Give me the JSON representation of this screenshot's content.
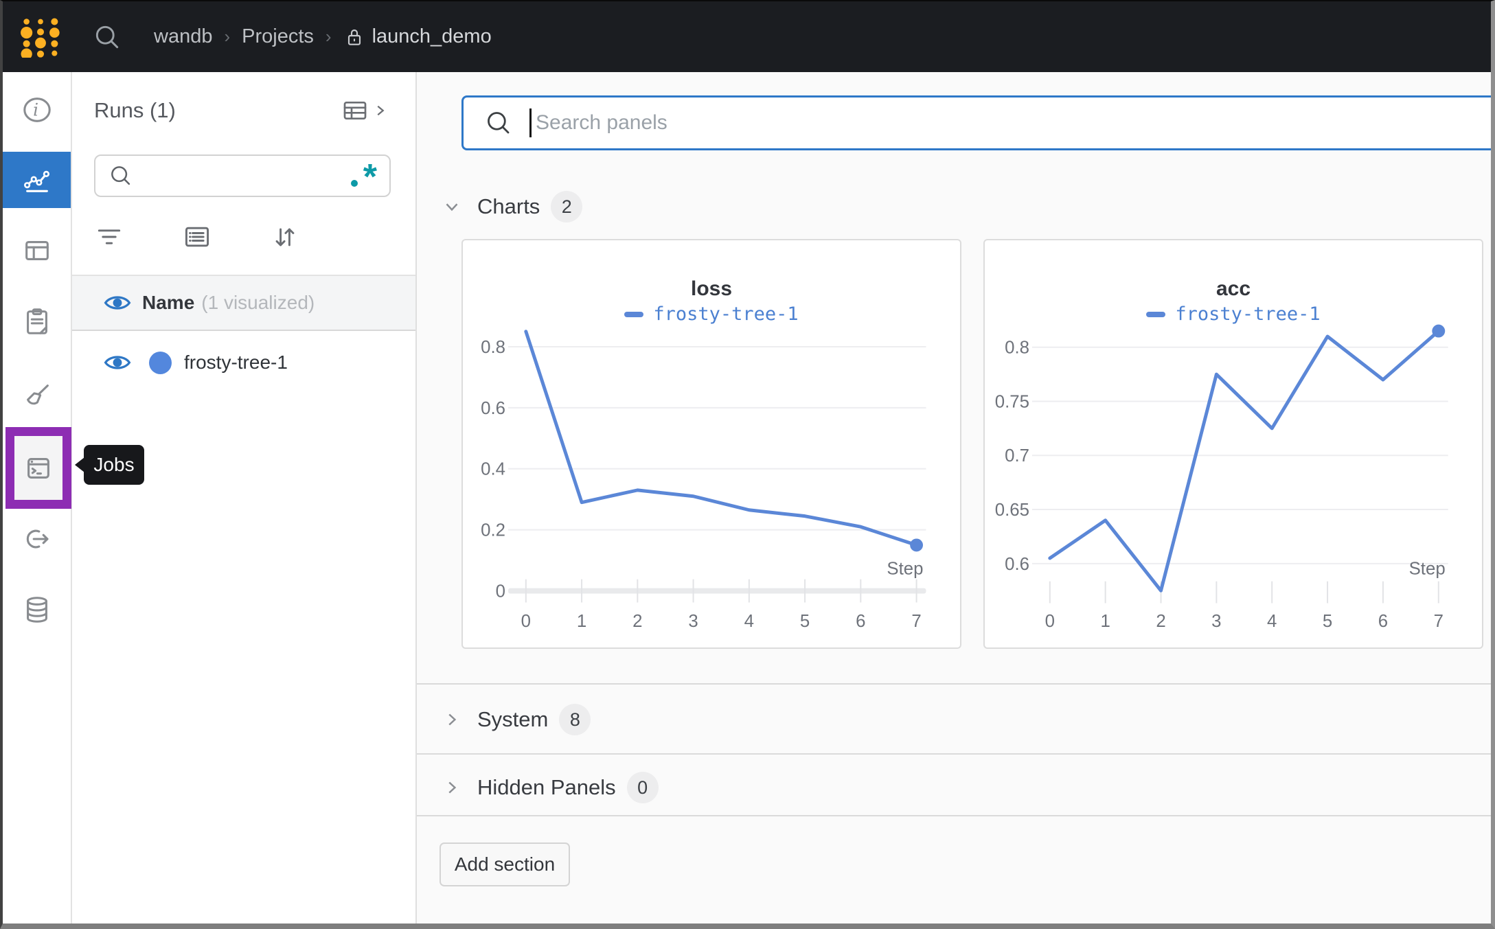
{
  "navbar": {
    "breadcrumb": {
      "team": "wandb",
      "section": "Projects",
      "project": "launch_demo"
    }
  },
  "sidebar": {
    "jobs_tooltip": "Jobs"
  },
  "runs_panel": {
    "title": "Runs (1)",
    "search_value": "",
    "columns_header": {
      "name": "Name",
      "visualized_note": "(1 visualized)"
    },
    "runs": [
      {
        "name": "frosty-tree-1",
        "color": "#5387dd"
      }
    ]
  },
  "main": {
    "panel_search_placeholder": "Search panels",
    "sections": [
      {
        "label": "Charts",
        "count": "2"
      },
      {
        "label": "System",
        "count": "8"
      },
      {
        "label": "Hidden Panels",
        "count": "0"
      }
    ],
    "add_section_label": "Add section"
  },
  "chart_data": [
    {
      "type": "line",
      "title": "loss",
      "xlabel": "Step",
      "xticks": [
        0,
        1,
        2,
        3,
        4,
        5,
        6,
        7
      ],
      "yticks": [
        0,
        0.2,
        0.4,
        0.6,
        0.8
      ],
      "ylim": [
        0,
        0.9
      ],
      "grid": true,
      "legend_position": "top",
      "line_color": "#5b87d7",
      "series": [
        {
          "name": "frosty-tree-1",
          "x": [
            0,
            1,
            2,
            3,
            4,
            5,
            6,
            7
          ],
          "y": [
            0.85,
            0.29,
            0.33,
            0.31,
            0.265,
            0.245,
            0.21,
            0.15
          ]
        }
      ]
    },
    {
      "type": "line",
      "title": "acc",
      "xlabel": "Step",
      "xticks": [
        0,
        1,
        2,
        3,
        4,
        5,
        6,
        7
      ],
      "yticks": [
        0.6,
        0.65,
        0.7,
        0.75,
        0.8
      ],
      "ylim": [
        0.565,
        0.83
      ],
      "grid": true,
      "legend_position": "top",
      "line_color": "#5b87d7",
      "series": [
        {
          "name": "frosty-tree-1",
          "x": [
            0,
            1,
            2,
            3,
            4,
            5,
            6,
            7
          ],
          "y": [
            0.605,
            0.64,
            0.575,
            0.775,
            0.725,
            0.81,
            0.77,
            0.815
          ]
        }
      ]
    }
  ],
  "colors": {
    "accent_blue": "#2e78c8",
    "run_blue": "#5387dd",
    "line_blue": "#5b87d7",
    "regex_teal": "#0d9aa7",
    "jobs_highlight_purple": "#8d2db3",
    "navbar_bg": "#1b1d21",
    "logo_yellow": "#fcb022"
  }
}
